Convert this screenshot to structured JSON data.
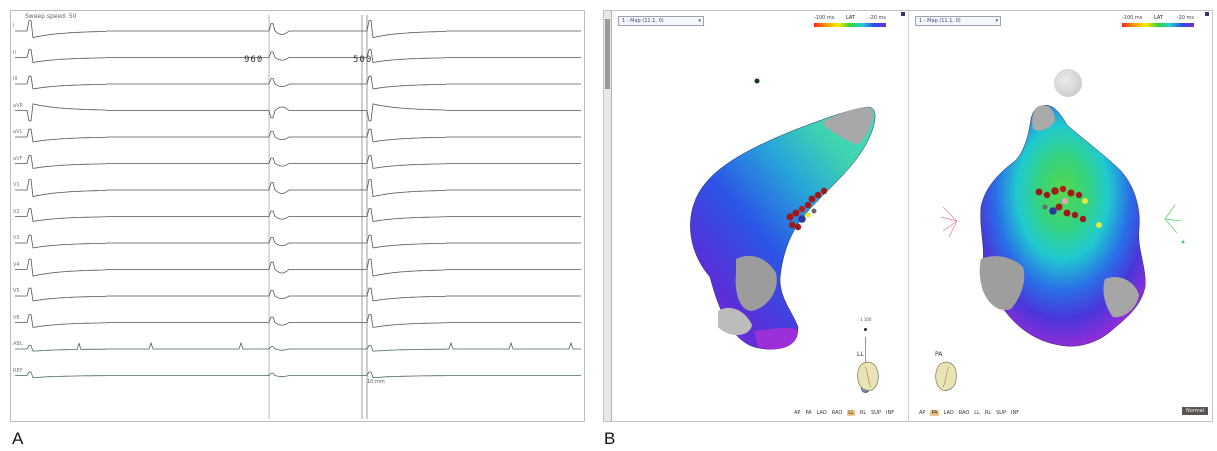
{
  "panels": {
    "a_label": "A",
    "b_label": "B"
  },
  "ecg": {
    "header": "Sweep speed: 50",
    "leads": [
      "I",
      "II",
      "III",
      "aVR",
      "aVL",
      "aVF",
      "V1",
      "V2",
      "V3",
      "V4",
      "V5",
      "V6",
      "ABL",
      "REF"
    ],
    "intervals": [
      "960",
      "500"
    ],
    "scale_label": "10 mm"
  },
  "map_app": {
    "left_view": {
      "map_select": "1 - Map (11.1, 0)",
      "lat": {
        "min": "-100 ms",
        "label": "LAT",
        "max": "-20 ms"
      },
      "orientation": "LL",
      "view_buttons": [
        "AP",
        "PA",
        "LAO",
        "RAO",
        "LL",
        "RL",
        "SUP",
        "INF"
      ],
      "active_view": "LL",
      "slider_ticks": [
        "1 100",
        "1 100"
      ]
    },
    "right_view": {
      "map_select": "1 - Map (11.1, 0)",
      "lat": {
        "min": "-100 ms",
        "label": "LAT",
        "max": "-20 ms"
      },
      "orientation": "PA",
      "view_buttons": [
        "AP",
        "PA",
        "LAO",
        "RAO",
        "LL",
        "RL",
        "SUP",
        "INF"
      ],
      "active_view": "PA",
      "normal_button": "Normal"
    },
    "colors": {
      "lat_early": "#ff2020",
      "lat_late": "#7a2bd8",
      "ablation_marker": "#a01818",
      "scar": "#9c9c9c"
    },
    "icons": {
      "heart_orientation": "heart-torso-icon",
      "dropdown": "chevron-down-icon"
    }
  }
}
